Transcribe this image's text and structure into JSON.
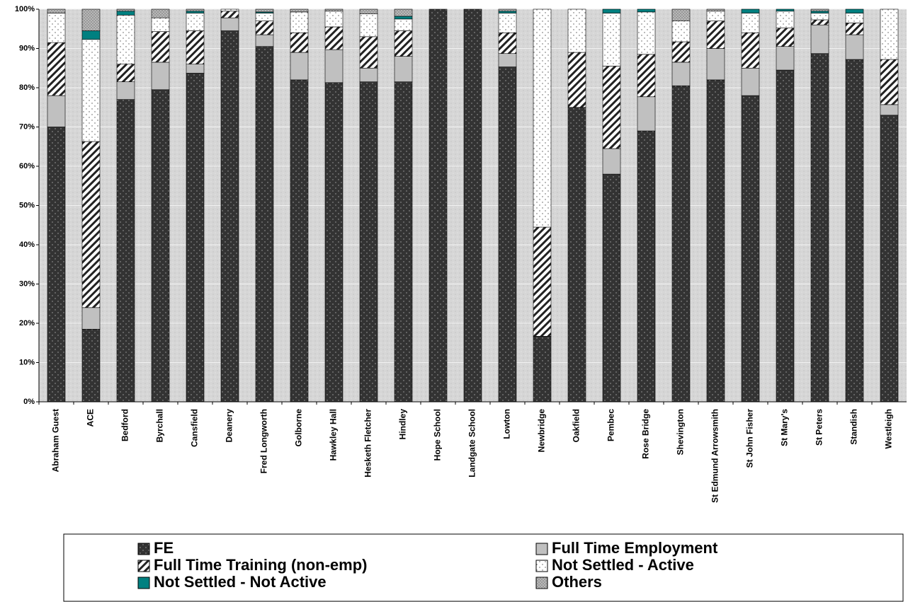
{
  "chart_data": {
    "type": "stacked_bar",
    "categories": [
      "Abraham Guest",
      "ACE",
      "Bedford",
      "Byrchall",
      "Cansfield",
      "Deanery",
      "Fred Longworth",
      "Golborne",
      "Hawkley Hall",
      "Hesketh Fletcher",
      "Hindley",
      "Hope School",
      "Landgate School",
      "Lowton",
      "Newbridge",
      "Oakfield",
      "Pembec",
      "Rose Bridge",
      "Shevington",
      "St Edmund Arrowsmith",
      "St John Fisher",
      "St Mary's",
      "St Peters",
      "Standish",
      "Westleigh"
    ],
    "series": [
      {
        "name": "FE",
        "color": "#333333",
        "values": [
          70,
          18.5,
          77,
          79.5,
          83.7,
          94.5,
          90.5,
          82,
          81.3,
          81.5,
          81.5,
          100,
          100,
          85.3,
          16.7,
          75,
          58,
          69,
          80.5,
          82,
          78,
          84.5,
          88.7,
          87.2,
          73
        ]
      },
      {
        "name": "Full Time Employment",
        "color": "#c0c0c0",
        "values": [
          8,
          5.5,
          4.5,
          7,
          2.3,
          3.3,
          3,
          7,
          8.4,
          3.5,
          6.5,
          0,
          0,
          3.4,
          0,
          0,
          6.5,
          8.7,
          6,
          8,
          7,
          6,
          7.3,
          6.3,
          2.7
        ]
      },
      {
        "name": "Full Time Training (non-emp)",
        "color": "#ffffff",
        "values": [
          13.5,
          42.3,
          4.5,
          7.8,
          8.5,
          1.7,
          3.5,
          5,
          5.8,
          8,
          6.5,
          0,
          0,
          5.3,
          27.8,
          14,
          21,
          10.8,
          5.2,
          7,
          9,
          4.7,
          1.3,
          3,
          11.5
        ]
      },
      {
        "name": "Not Settled - Active",
        "color": "#f8f8f8",
        "values": [
          7.5,
          26,
          12.5,
          3.5,
          4.5,
          0.5,
          2,
          5.3,
          4,
          5.8,
          3,
          0,
          0,
          5,
          55.5,
          11,
          13.5,
          10.8,
          5.3,
          2.5,
          5,
          4.3,
          1.7,
          2.5,
          12.8
        ]
      },
      {
        "name": "Not Settled - Not Active",
        "color": "#008080",
        "values": [
          0,
          2.2,
          1,
          0,
          0.5,
          0,
          0.3,
          0,
          0,
          0,
          0.7,
          0,
          0,
          0.5,
          0,
          0,
          1,
          0.7,
          0,
          0,
          1,
          0.5,
          0.5,
          1,
          0
        ]
      },
      {
        "name": "Others",
        "color": "#999999",
        "values": [
          1,
          5.5,
          0.5,
          2.2,
          0.5,
          0,
          0.7,
          0.7,
          0.5,
          1.2,
          1.8,
          0,
          0,
          0.5,
          0,
          0,
          0,
          0,
          3,
          0.5,
          0,
          0,
          0.5,
          0,
          0
        ]
      }
    ],
    "ylim": [
      0,
      100
    ],
    "yticks": [
      {
        "value": 0,
        "label": "0%"
      },
      {
        "value": 10,
        "label": "10%"
      },
      {
        "value": 20,
        "label": "20%"
      },
      {
        "value": 30,
        "label": "30%"
      },
      {
        "value": 40,
        "label": "40%"
      },
      {
        "value": 50,
        "label": "50%"
      },
      {
        "value": 60,
        "label": "60%"
      },
      {
        "value": 70,
        "label": "70%"
      },
      {
        "value": 80,
        "label": "80%"
      },
      {
        "value": 90,
        "label": "90%"
      },
      {
        "value": 100,
        "label": "100%"
      }
    ],
    "grid": true
  }
}
